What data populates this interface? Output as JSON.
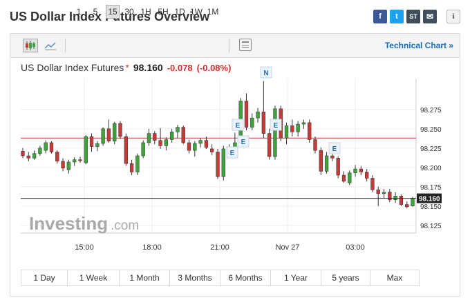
{
  "header": {
    "title": "US Dollar Index Futures Overview"
  },
  "share": {
    "facebook": "f",
    "twitter": "t",
    "stocktwits": "ST",
    "email": "✉",
    "info": "i"
  },
  "toolbar": {
    "timeframes": [
      "1",
      "5",
      "15",
      "30",
      "1H",
      "5H",
      "1D",
      "1W",
      "1M"
    ],
    "selected": "15",
    "technical_chart": "Technical Chart »"
  },
  "quote": {
    "name": "US Dollar Index Futures",
    "asterisk": "*",
    "price": "98.160",
    "change": "-0.078",
    "change_pct": "(-0.08%)"
  },
  "watermark": {
    "brand": "Investing",
    "suffix": ".com"
  },
  "range_tabs": [
    "1 Day",
    "1 Week",
    "1 Month",
    "3 Months",
    "6 Months",
    "1 Year",
    "5 years",
    "Max"
  ],
  "colors": {
    "up": "#3ea33b",
    "down": "#c63a3a",
    "ref_line": "#c63a3a",
    "price_line": "#222222",
    "link": "#1a6db3",
    "change": "#d0302e"
  },
  "chart_data": {
    "type": "candlestick",
    "x_ticks": [
      "15:00",
      "18:00",
      "21:00",
      "Nov 27",
      "03:00"
    ],
    "y_ticks": [
      98.275,
      98.25,
      98.225,
      98.2,
      98.175,
      98.15,
      98.125
    ],
    "ylim": [
      98.115,
      98.315
    ],
    "reference_line": 98.238,
    "last_price": 98.16,
    "last_price_label": "98.160",
    "event_markers": [
      "E",
      "E",
      "E",
      "E",
      "E",
      "N"
    ],
    "candles": [
      {
        "o": 98.221,
        "h": 98.225,
        "l": 98.212,
        "c": 98.215
      },
      {
        "o": 98.215,
        "h": 98.22,
        "l": 98.208,
        "c": 98.212
      },
      {
        "o": 98.212,
        "h": 98.222,
        "l": 98.21,
        "c": 98.218
      },
      {
        "o": 98.218,
        "h": 98.228,
        "l": 98.215,
        "c": 98.225
      },
      {
        "o": 98.222,
        "h": 98.235,
        "l": 98.218,
        "c": 98.232
      },
      {
        "o": 98.232,
        "h": 98.234,
        "l": 98.218,
        "c": 98.22
      },
      {
        "o": 98.22,
        "h": 98.222,
        "l": 98.205,
        "c": 98.208
      },
      {
        "o": 98.208,
        "h": 98.212,
        "l": 98.195,
        "c": 98.199
      },
      {
        "o": 98.197,
        "h": 98.21,
        "l": 98.192,
        "c": 98.207
      },
      {
        "o": 98.207,
        "h": 98.213,
        "l": 98.202,
        "c": 98.21
      },
      {
        "o": 98.21,
        "h": 98.214,
        "l": 98.206,
        "c": 98.209
      },
      {
        "o": 98.206,
        "h": 98.242,
        "l": 98.204,
        "c": 98.24
      },
      {
        "o": 98.24,
        "h": 98.244,
        "l": 98.22,
        "c": 98.227
      },
      {
        "o": 98.227,
        "h": 98.234,
        "l": 98.221,
        "c": 98.231
      },
      {
        "o": 98.231,
        "h": 98.252,
        "l": 98.228,
        "c": 98.25
      },
      {
        "o": 98.25,
        "h": 98.262,
        "l": 98.232,
        "c": 98.234
      },
      {
        "o": 98.234,
        "h": 98.259,
        "l": 98.23,
        "c": 98.257
      },
      {
        "o": 98.257,
        "h": 98.26,
        "l": 98.237,
        "c": 98.24
      },
      {
        "o": 98.24,
        "h": 98.244,
        "l": 98.202,
        "c": 98.205
      },
      {
        "o": 98.205,
        "h": 98.21,
        "l": 98.19,
        "c": 98.194
      },
      {
        "o": 98.194,
        "h": 98.218,
        "l": 98.19,
        "c": 98.215
      },
      {
        "o": 98.215,
        "h": 98.235,
        "l": 98.212,
        "c": 98.232
      },
      {
        "o": 98.232,
        "h": 98.25,
        "l": 98.228,
        "c": 98.244
      },
      {
        "o": 98.244,
        "h": 98.247,
        "l": 98.23,
        "c": 98.235
      },
      {
        "o": 98.235,
        "h": 98.251,
        "l": 98.224,
        "c": 98.228
      },
      {
        "o": 98.228,
        "h": 98.239,
        "l": 98.222,
        "c": 98.236
      },
      {
        "o": 98.236,
        "h": 98.25,
        "l": 98.232,
        "c": 98.246
      },
      {
        "o": 98.246,
        "h": 98.255,
        "l": 98.238,
        "c": 98.252
      },
      {
        "o": 98.252,
        "h": 98.254,
        "l": 98.23,
        "c": 98.232
      },
      {
        "o": 98.232,
        "h": 98.236,
        "l": 98.218,
        "c": 98.222
      },
      {
        "o": 98.222,
        "h": 98.234,
        "l": 98.214,
        "c": 98.231
      },
      {
        "o": 98.231,
        "h": 98.238,
        "l": 98.226,
        "c": 98.235
      },
      {
        "o": 98.235,
        "h": 98.24,
        "l": 98.224,
        "c": 98.226
      },
      {
        "o": 98.224,
        "h": 98.23,
        "l": 98.216,
        "c": 98.22
      },
      {
        "o": 98.22,
        "h": 98.224,
        "l": 98.185,
        "c": 98.188
      },
      {
        "o": 98.188,
        "h": 98.228,
        "l": 98.183,
        "c": 98.224
      },
      {
        "o": 98.222,
        "h": 98.23,
        "l": 98.214,
        "c": 98.218
      },
      {
        "o": 98.218,
        "h": 98.245,
        "l": 98.214,
        "c": 98.232
      },
      {
        "o": 98.232,
        "h": 98.29,
        "l": 98.228,
        "c": 98.286
      },
      {
        "o": 98.286,
        "h": 98.296,
        "l": 98.248,
        "c": 98.252
      },
      {
        "o": 98.252,
        "h": 98.27,
        "l": 98.248,
        "c": 98.264
      },
      {
        "o": 98.264,
        "h": 98.277,
        "l": 98.258,
        "c": 98.272
      },
      {
        "o": 98.272,
        "h": 98.312,
        "l": 98.238,
        "c": 98.244
      },
      {
        "o": 98.244,
        "h": 98.25,
        "l": 98.21,
        "c": 98.214
      },
      {
        "o": 98.214,
        "h": 98.28,
        "l": 98.21,
        "c": 98.276
      },
      {
        "o": 98.276,
        "h": 98.28,
        "l": 98.234,
        "c": 98.238
      },
      {
        "o": 98.238,
        "h": 98.258,
        "l": 98.23,
        "c": 98.254
      },
      {
        "o": 98.254,
        "h": 98.262,
        "l": 98.24,
        "c": 98.246
      },
      {
        "o": 98.246,
        "h": 98.26,
        "l": 98.24,
        "c": 98.256
      },
      {
        "o": 98.256,
        "h": 98.262,
        "l": 98.25,
        "c": 98.258
      },
      {
        "o": 98.258,
        "h": 98.262,
        "l": 98.232,
        "c": 98.236
      },
      {
        "o": 98.236,
        "h": 98.24,
        "l": 98.218,
        "c": 98.222
      },
      {
        "o": 98.222,
        "h": 98.226,
        "l": 98.19,
        "c": 98.195
      },
      {
        "o": 98.195,
        "h": 98.22,
        "l": 98.192,
        "c": 98.215
      },
      {
        "o": 98.215,
        "h": 98.224,
        "l": 98.208,
        "c": 98.212
      },
      {
        "o": 98.212,
        "h": 98.214,
        "l": 98.186,
        "c": 98.19
      },
      {
        "o": 98.19,
        "h": 98.195,
        "l": 98.18,
        "c": 98.182
      },
      {
        "o": 98.18,
        "h": 98.196,
        "l": 98.177,
        "c": 98.193
      },
      {
        "o": 98.193,
        "h": 98.203,
        "l": 98.188,
        "c": 98.198
      },
      {
        "o": 98.198,
        "h": 98.202,
        "l": 98.19,
        "c": 98.194
      },
      {
        "o": 98.194,
        "h": 98.198,
        "l": 98.182,
        "c": 98.186
      },
      {
        "o": 98.186,
        "h": 98.19,
        "l": 98.168,
        "c": 98.171
      },
      {
        "o": 98.171,
        "h": 98.175,
        "l": 98.15,
        "c": 98.166
      },
      {
        "o": 98.166,
        "h": 98.172,
        "l": 98.16,
        "c": 98.168
      },
      {
        "o": 98.168,
        "h": 98.172,
        "l": 98.155,
        "c": 98.158
      },
      {
        "o": 98.158,
        "h": 98.168,
        "l": 98.154,
        "c": 98.163
      },
      {
        "o": 98.163,
        "h": 98.165,
        "l": 98.15,
        "c": 98.152
      },
      {
        "o": 98.152,
        "h": 98.156,
        "l": 98.147,
        "c": 98.149
      },
      {
        "o": 98.15,
        "h": 98.162,
        "l": 98.149,
        "c": 98.16
      }
    ]
  }
}
